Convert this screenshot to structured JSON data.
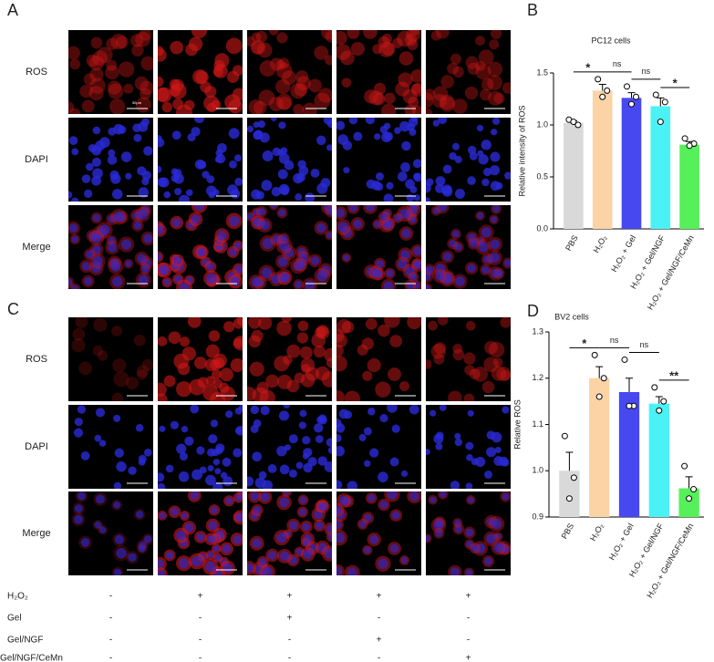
{
  "panel_labels": [
    "A",
    "B",
    "C",
    "D"
  ],
  "image_rows": [
    "ROS",
    "DAPI",
    "Merge"
  ],
  "scale_bar_label": "50μm",
  "treatments": [
    {
      "name": "H₂O₂",
      "marks": [
        "-",
        "+",
        "+",
        "+",
        "+"
      ]
    },
    {
      "name": "Gel",
      "marks": [
        "-",
        "-",
        "+",
        "-",
        "-"
      ]
    },
    {
      "name": "Gel/NGF",
      "marks": [
        "-",
        "-",
        "-",
        "+",
        "-"
      ]
    },
    {
      "name": "Gel/NGF/CeMn",
      "marks": [
        "-",
        "-",
        "-",
        "-",
        "+"
      ]
    }
  ],
  "chart_data": [
    {
      "type": "bar",
      "title": "PC12 cells",
      "y_label": "Relative intensity of ROS",
      "categories": [
        "PBS",
        "H₂O₂",
        "H₂O₂ + Gel",
        "H₂O₂ + Gel/NGF",
        "H₂O₂ + Gel/NGF/CeMn"
      ],
      "values": [
        1.02,
        1.33,
        1.26,
        1.18,
        0.81
      ],
      "errors": [
        0.02,
        0.06,
        0.05,
        0.08,
        0.03
      ],
      "points": [
        [
          1.05,
          1.0,
          1.03
        ],
        [
          1.44,
          1.33,
          1.27
        ],
        [
          1.37,
          1.27,
          1.2
        ],
        [
          1.29,
          1.22,
          1.03
        ],
        [
          0.87,
          0.82,
          0.8
        ]
      ],
      "colors": [
        "#d9d9d9",
        "#fbd3a5",
        "#4848f0",
        "#4af2f5",
        "#55f05a"
      ],
      "annotations": [
        "*",
        "ns",
        "ns",
        "*"
      ],
      "ylim": [
        0,
        1.5
      ],
      "yticks": [
        {
          "value": 0,
          "label": "0.0"
        },
        0.5,
        {
          "value": 1,
          "label": "1.0"
        },
        1.5
      ]
    },
    {
      "type": "bar",
      "title": "BV2 cells",
      "y_label": "Relative ROS",
      "categories": [
        "PBS",
        "H₂O₂",
        "H₂O₂ + Gel",
        "H₂O₂ + Gel/NGF",
        "H₂O₂ + Gel/NGF/CeMn"
      ],
      "values": [
        1.0,
        1.2,
        1.17,
        1.145,
        0.962
      ],
      "errors": [
        0.04,
        0.025,
        0.03,
        0.015,
        0.025
      ],
      "points": [
        [
          1.075,
          0.985,
          0.94
        ],
        [
          1.25,
          1.2,
          1.16
        ],
        [
          1.24,
          1.14,
          1.14
        ],
        [
          1.18,
          1.15,
          1.13
        ],
        [
          1.01,
          0.96,
          0.94
        ]
      ],
      "colors": [
        "#d9d9d9",
        "#fbd3a5",
        "#4848f0",
        "#4af2f5",
        "#55f05a"
      ],
      "annotations": [
        "*",
        "ns",
        "ns",
        "**"
      ],
      "ylim": [
        0.9,
        1.3
      ],
      "yticks": [
        0.9,
        {
          "value": 1,
          "label": "1.0"
        },
        1.1,
        1.2,
        1.3
      ]
    }
  ]
}
